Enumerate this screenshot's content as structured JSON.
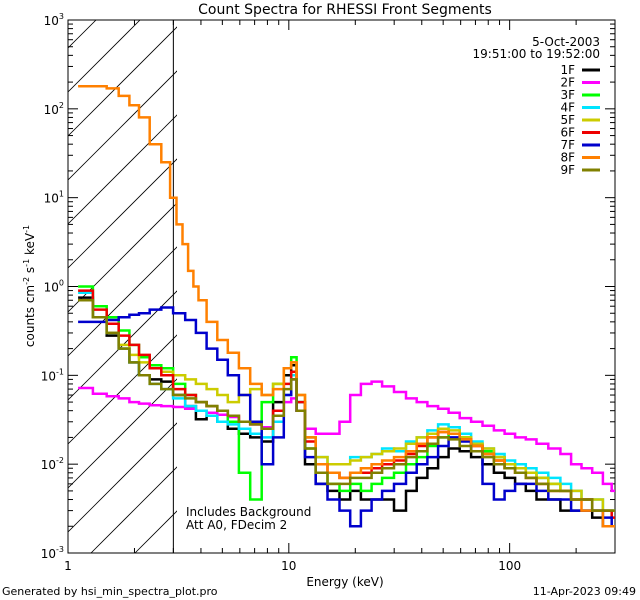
{
  "chart_data": {
    "type": "line",
    "title": "Count Spectra for RHESSI Front Segments",
    "xlabel": "Energy (keV)",
    "ylabel": {
      "base": "counts cm",
      "exp1": "-2",
      "mid": " s",
      "exp2": "-1",
      "tail": " keV",
      "exp3": "-1"
    },
    "xscale": "log",
    "yscale": "log",
    "xlim": [
      1,
      300
    ],
    "ylim": [
      0.001,
      1000
    ],
    "x_ticks": [
      {
        "value": 1,
        "label": "1"
      },
      {
        "value": 10,
        "label": "10"
      },
      {
        "value": 100,
        "label": "100"
      }
    ],
    "y_ticks": [
      {
        "value": 0.001,
        "base": "10",
        "exp": "-3"
      },
      {
        "value": 0.01,
        "base": "10",
        "exp": "-2"
      },
      {
        "value": 0.1,
        "base": "10",
        "exp": "-1"
      },
      {
        "value": 1,
        "base": "10",
        "exp": "0"
      },
      {
        "value": 10,
        "base": "10",
        "exp": "1"
      },
      {
        "value": 100,
        "base": "10",
        "exp": "2"
      },
      {
        "value": 1000,
        "base": "10",
        "exp": "3"
      }
    ],
    "date": "5-Oct-2003",
    "time_range": "19:51:00 to 19:52:00",
    "shaded_region_upper_energy_keV": 3,
    "annotations": [
      "Includes Background",
      "Att A0, FDecim 2"
    ],
    "footer_left": "Generated by hsi_min_spectra_plot.pro",
    "footer_right": "11-Apr-2023 09:49",
    "series": [
      {
        "name": "1F",
        "color": "#000000",
        "x": [
          1.2,
          1.4,
          1.6,
          1.8,
          2.0,
          2.2,
          2.5,
          2.8,
          3.2,
          3.6,
          4.0,
          4.5,
          5.0,
          5.6,
          6.3,
          7.1,
          8.0,
          9.0,
          10.0,
          10.5,
          11.2,
          12.5,
          14,
          16,
          18,
          20,
          22.5,
          25,
          28,
          32,
          36,
          40,
          45,
          50,
          56,
          63,
          71,
          80,
          90,
          100,
          112,
          125,
          140,
          160,
          180,
          200,
          224,
          250,
          280,
          300
        ],
        "y": [
          0.75,
          0.45,
          0.28,
          0.2,
          0.14,
          0.1,
          0.09,
          0.085,
          0.06,
          0.045,
          0.032,
          0.035,
          0.03,
          0.025,
          0.022,
          0.02,
          0.018,
          0.05,
          0.1,
          0.13,
          0.04,
          0.01,
          0.006,
          0.005,
          0.004,
          0.005,
          0.004,
          0.004,
          0.004,
          0.003,
          0.005,
          0.007,
          0.009,
          0.012,
          0.015,
          0.014,
          0.012,
          0.01,
          0.008,
          0.007,
          0.006,
          0.005,
          0.004,
          0.004,
          0.003,
          0.003,
          0.003,
          0.0025,
          0.002,
          0.002
        ]
      },
      {
        "name": "2F",
        "color": "#ff00ff",
        "x": [
          1.2,
          1.4,
          1.6,
          1.8,
          2.0,
          2.2,
          2.5,
          2.8,
          3.2,
          3.6,
          4.0,
          4.5,
          5.0,
          5.6,
          6.3,
          7.1,
          8.0,
          9.0,
          10.0,
          10.5,
          11.2,
          12.5,
          14,
          16,
          18,
          20,
          22.5,
          25,
          28,
          32,
          36,
          40,
          45,
          50,
          56,
          63,
          71,
          80,
          90,
          100,
          112,
          125,
          140,
          160,
          180,
          200,
          224,
          250,
          280,
          300
        ],
        "y": [
          0.072,
          0.062,
          0.058,
          0.055,
          0.05,
          0.048,
          0.046,
          0.045,
          0.044,
          0.042,
          0.04,
          0.038,
          0.036,
          0.034,
          0.03,
          0.028,
          0.026,
          0.035,
          0.05,
          0.055,
          0.04,
          0.025,
          0.022,
          0.022,
          0.03,
          0.06,
          0.08,
          0.085,
          0.075,
          0.065,
          0.055,
          0.05,
          0.045,
          0.042,
          0.038,
          0.033,
          0.03,
          0.027,
          0.024,
          0.022,
          0.02,
          0.019,
          0.017,
          0.015,
          0.013,
          0.01,
          0.009,
          0.008,
          0.006,
          0.005
        ]
      },
      {
        "name": "3F",
        "color": "#00ff00",
        "x": [
          1.2,
          1.4,
          1.6,
          1.8,
          2.0,
          2.2,
          2.5,
          2.8,
          3.2,
          3.6,
          4.0,
          4.5,
          5.0,
          5.6,
          6.3,
          7.1,
          8.0,
          9.0,
          10.0,
          10.5,
          11.2,
          12.5,
          14,
          16,
          18,
          20,
          22.5,
          25,
          28,
          32,
          36,
          40,
          45,
          50,
          56,
          63,
          71,
          80,
          90,
          100,
          112,
          125,
          140,
          160,
          180,
          200,
          224,
          250,
          280,
          300
        ],
        "y": [
          1.0,
          0.6,
          0.45,
          0.32,
          0.22,
          0.16,
          0.13,
          0.12,
          0.08,
          0.06,
          0.05,
          0.045,
          0.04,
          0.03,
          0.008,
          0.004,
          0.05,
          0.08,
          0.12,
          0.16,
          0.05,
          0.015,
          0.008,
          0.006,
          0.005,
          0.006,
          0.005,
          0.006,
          0.007,
          0.008,
          0.01,
          0.012,
          0.016,
          0.02,
          0.022,
          0.02,
          0.017,
          0.014,
          0.012,
          0.01,
          0.009,
          0.008,
          0.007,
          0.006,
          0.005,
          0.004,
          0.004,
          0.003,
          0.003,
          0.003
        ]
      },
      {
        "name": "4F",
        "color": "#00e5ff",
        "x": [
          1.2,
          1.4,
          1.6,
          1.8,
          2.0,
          2.2,
          2.5,
          2.8,
          3.2,
          3.6,
          4.0,
          4.5,
          5.0,
          5.6,
          6.3,
          7.1,
          8.0,
          9.0,
          10.0,
          10.5,
          11.2,
          12.5,
          14,
          16,
          18,
          20,
          22.5,
          25,
          28,
          32,
          36,
          40,
          45,
          50,
          56,
          63,
          71,
          80,
          90,
          100,
          112,
          125,
          140,
          160,
          180,
          200,
          224,
          250,
          280,
          300
        ],
        "y": [
          0.85,
          0.45,
          0.3,
          0.2,
          0.14,
          0.1,
          0.08,
          0.07,
          0.055,
          0.045,
          0.04,
          0.035,
          0.03,
          0.028,
          0.025,
          0.022,
          0.02,
          0.03,
          0.06,
          0.1,
          0.05,
          0.02,
          0.012,
          0.01,
          0.01,
          0.012,
          0.012,
          0.013,
          0.015,
          0.014,
          0.018,
          0.02,
          0.024,
          0.028,
          0.026,
          0.022,
          0.018,
          0.015,
          0.013,
          0.011,
          0.01,
          0.009,
          0.008,
          0.007,
          0.006,
          0.005,
          0.004,
          0.004,
          0.003,
          0.003
        ]
      },
      {
        "name": "5F",
        "color": "#cccc00",
        "x": [
          1.2,
          1.4,
          1.6,
          1.8,
          2.0,
          2.2,
          2.5,
          2.8,
          3.2,
          3.6,
          4.0,
          4.5,
          5.0,
          5.6,
          6.3,
          7.1,
          8.0,
          9.0,
          10.0,
          10.5,
          11.2,
          12.5,
          14,
          16,
          18,
          20,
          22.5,
          25,
          28,
          32,
          36,
          40,
          45,
          50,
          56,
          63,
          71,
          80,
          90,
          100,
          112,
          125,
          140,
          160,
          180,
          200,
          224,
          250,
          280,
          300
        ],
        "y": [
          0.7,
          0.45,
          0.3,
          0.22,
          0.17,
          0.14,
          0.12,
          0.11,
          0.1,
          0.09,
          0.08,
          0.07,
          0.06,
          0.05,
          0.06,
          0.07,
          0.06,
          0.08,
          0.12,
          0.14,
          0.06,
          0.02,
          0.012,
          0.01,
          0.01,
          0.011,
          0.012,
          0.013,
          0.014,
          0.015,
          0.017,
          0.02,
          0.022,
          0.025,
          0.024,
          0.02,
          0.017,
          0.015,
          0.012,
          0.01,
          0.009,
          0.008,
          0.007,
          0.006,
          0.005,
          0.005,
          0.004,
          0.004,
          0.003,
          0.003
        ]
      },
      {
        "name": "6F",
        "color": "#ee0000",
        "x": [
          1.2,
          1.4,
          1.6,
          1.8,
          2.0,
          2.2,
          2.5,
          2.8,
          3.2,
          3.6,
          4.0,
          4.5,
          5.0,
          5.6,
          6.3,
          7.1,
          8.0,
          9.0,
          10.0,
          10.5,
          11.2,
          12.5,
          14,
          16,
          18,
          20,
          22.5,
          25,
          28,
          32,
          36,
          40,
          45,
          50,
          56,
          63,
          71,
          80,
          90,
          100,
          112,
          125,
          140,
          160,
          180,
          200,
          224,
          250,
          280,
          300
        ],
        "y": [
          0.9,
          0.55,
          0.38,
          0.28,
          0.22,
          0.17,
          0.12,
          0.1,
          0.07,
          0.06,
          0.05,
          0.045,
          0.04,
          0.035,
          0.03,
          0.028,
          0.025,
          0.04,
          0.08,
          0.11,
          0.05,
          0.018,
          0.01,
          0.008,
          0.007,
          0.008,
          0.008,
          0.009,
          0.01,
          0.011,
          0.013,
          0.016,
          0.02,
          0.023,
          0.022,
          0.019,
          0.016,
          0.013,
          0.011,
          0.009,
          0.008,
          0.007,
          0.006,
          0.005,
          0.005,
          0.004,
          0.004,
          0.003,
          0.003,
          0.0025
        ]
      },
      {
        "name": "7F",
        "color": "#0000cc",
        "x": [
          1.2,
          1.4,
          1.6,
          1.8,
          2.0,
          2.2,
          2.5,
          2.8,
          3.2,
          3.6,
          4.0,
          4.5,
          5.0,
          5.6,
          6.3,
          7.1,
          8.0,
          9.0,
          10.0,
          10.5,
          11.2,
          12.5,
          14,
          16,
          18,
          20,
          22.5,
          25,
          28,
          32,
          36,
          40,
          45,
          50,
          56,
          63,
          71,
          80,
          90,
          100,
          112,
          125,
          140,
          160,
          180,
          200,
          224,
          250,
          280,
          300
        ],
        "y": [
          0.4,
          0.4,
          0.42,
          0.45,
          0.48,
          0.5,
          0.55,
          0.58,
          0.5,
          0.42,
          0.3,
          0.2,
          0.15,
          0.1,
          0.06,
          0.03,
          0.01,
          0.02,
          0.06,
          0.09,
          0.04,
          0.012,
          0.006,
          0.004,
          0.003,
          0.002,
          0.003,
          0.004,
          0.005,
          0.006,
          0.008,
          0.01,
          0.012,
          0.016,
          0.02,
          0.018,
          0.014,
          0.006,
          0.004,
          0.005,
          0.006,
          0.006,
          0.005,
          0.004,
          0.004,
          0.003,
          0.003,
          0.003,
          0.0025,
          0.002
        ]
      },
      {
        "name": "8F",
        "color": "#ff8000",
        "x": [
          1.2,
          1.4,
          1.6,
          1.8,
          2.0,
          2.2,
          2.5,
          2.8,
          3.0,
          3.2,
          3.4,
          3.6,
          3.8,
          4.0,
          4.5,
          5.0,
          5.6,
          6.3,
          7.1,
          8.0,
          9.0,
          10.0,
          10.5,
          11.2,
          12.5,
          14,
          16,
          18,
          20,
          22.5,
          25,
          28,
          32,
          36,
          40,
          45,
          50,
          56,
          63,
          71,
          80,
          90,
          100,
          112,
          125,
          140,
          160,
          180,
          200,
          224,
          250,
          280,
          300
        ],
        "y": [
          180,
          180,
          170,
          140,
          110,
          80,
          40,
          25,
          10,
          5,
          3,
          1.5,
          1.0,
          0.7,
          0.4,
          0.25,
          0.18,
          0.12,
          0.08,
          0.06,
          0.07,
          0.12,
          0.14,
          0.06,
          0.02,
          0.01,
          0.008,
          0.007,
          0.008,
          0.009,
          0.01,
          0.011,
          0.012,
          0.014,
          0.017,
          0.02,
          0.023,
          0.022,
          0.019,
          0.016,
          0.013,
          0.011,
          0.009,
          0.008,
          0.007,
          0.006,
          0.005,
          0.005,
          0.004,
          0.003,
          0.003,
          0.002,
          0.002
        ]
      },
      {
        "name": "9F",
        "color": "#808000",
        "x": [
          1.2,
          1.4,
          1.6,
          1.8,
          2.0,
          2.2,
          2.5,
          2.8,
          3.2,
          3.6,
          4.0,
          4.5,
          5.0,
          5.6,
          6.3,
          7.1,
          8.0,
          9.0,
          10.0,
          10.5,
          11.2,
          12.5,
          14,
          16,
          18,
          20,
          22.5,
          25,
          28,
          32,
          36,
          40,
          45,
          50,
          56,
          63,
          71,
          80,
          90,
          100,
          112,
          125,
          140,
          160,
          180,
          200,
          224,
          250,
          280,
          300
        ],
        "y": [
          0.7,
          0.45,
          0.3,
          0.2,
          0.14,
          0.1,
          0.08,
          0.07,
          0.06,
          0.055,
          0.05,
          0.045,
          0.04,
          0.035,
          0.03,
          0.028,
          0.025,
          0.035,
          0.07,
          0.09,
          0.04,
          0.015,
          0.008,
          0.006,
          0.006,
          0.007,
          0.007,
          0.008,
          0.009,
          0.01,
          0.012,
          0.014,
          0.017,
          0.02,
          0.019,
          0.016,
          0.014,
          0.012,
          0.01,
          0.009,
          0.008,
          0.007,
          0.006,
          0.005,
          0.005,
          0.004,
          0.004,
          0.003,
          0.003,
          0.003
        ]
      }
    ]
  }
}
